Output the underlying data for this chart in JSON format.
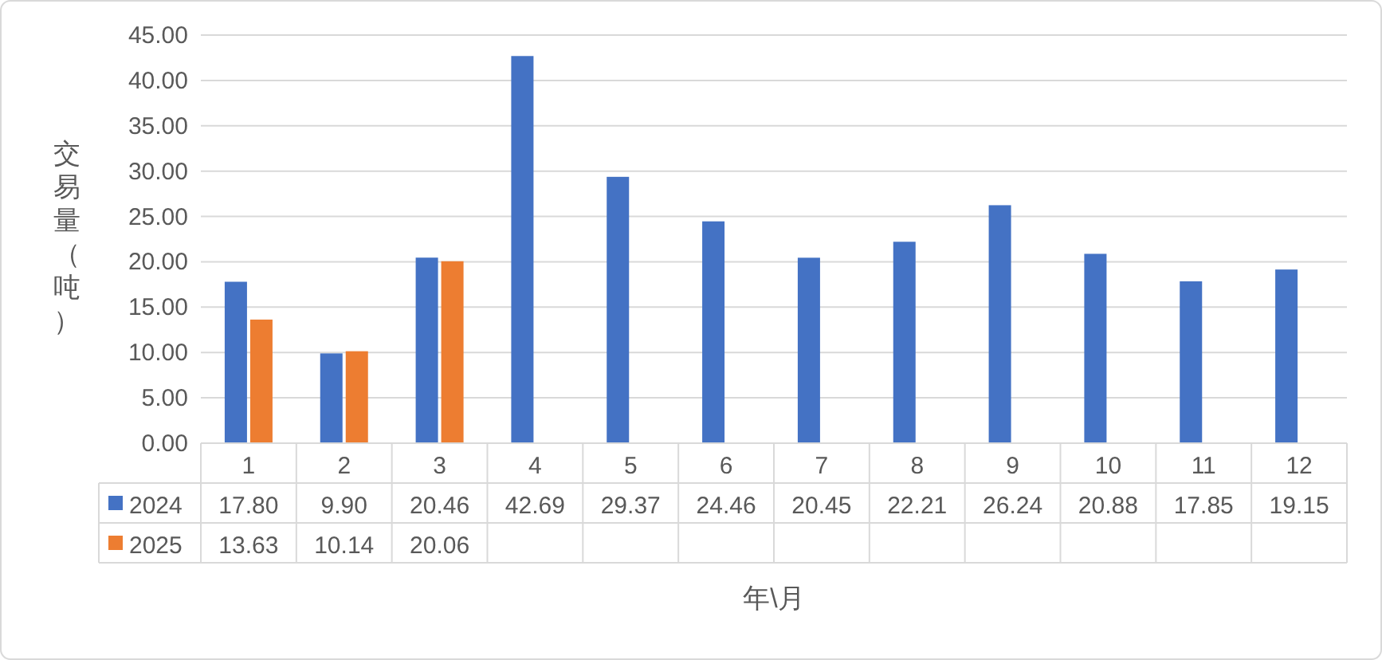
{
  "chart_data": {
    "type": "bar",
    "xlabel": "年\\月",
    "ylabel": "交易量（吨）",
    "categories": [
      "1",
      "2",
      "3",
      "4",
      "5",
      "6",
      "7",
      "8",
      "9",
      "10",
      "11",
      "12"
    ],
    "series": [
      {
        "name": "2024",
        "color": "#4472c4",
        "values": [
          17.8,
          9.9,
          20.46,
          42.69,
          29.37,
          24.46,
          20.45,
          22.21,
          26.24,
          20.88,
          17.85,
          19.15
        ],
        "value_labels": [
          "17.80",
          "9.90",
          "20.46",
          "42.69",
          "29.37",
          "24.46",
          "20.45",
          "22.21",
          "26.24",
          "20.88",
          "17.85",
          "19.15"
        ]
      },
      {
        "name": "2025",
        "color": "#ed7d31",
        "values": [
          13.63,
          10.14,
          20.06,
          null,
          null,
          null,
          null,
          null,
          null,
          null,
          null,
          null
        ],
        "value_labels": [
          "13.63",
          "10.14",
          "20.06",
          null,
          null,
          null,
          null,
          null,
          null,
          null,
          null,
          null
        ]
      }
    ],
    "ylim": [
      0,
      45
    ],
    "yticks": [
      {
        "value": 0,
        "label": "0.00"
      },
      {
        "value": 5,
        "label": "5.00"
      },
      {
        "value": 10,
        "label": "10.00"
      },
      {
        "value": 15,
        "label": "15.00"
      },
      {
        "value": 20,
        "label": "20.00"
      },
      {
        "value": 25,
        "label": "25.00"
      },
      {
        "value": 30,
        "label": "30.00"
      },
      {
        "value": 35,
        "label": "35.00"
      },
      {
        "value": 40,
        "label": "40.00"
      },
      {
        "value": 45,
        "label": "45.00"
      }
    ],
    "grid": "y",
    "legend": "bottom"
  }
}
